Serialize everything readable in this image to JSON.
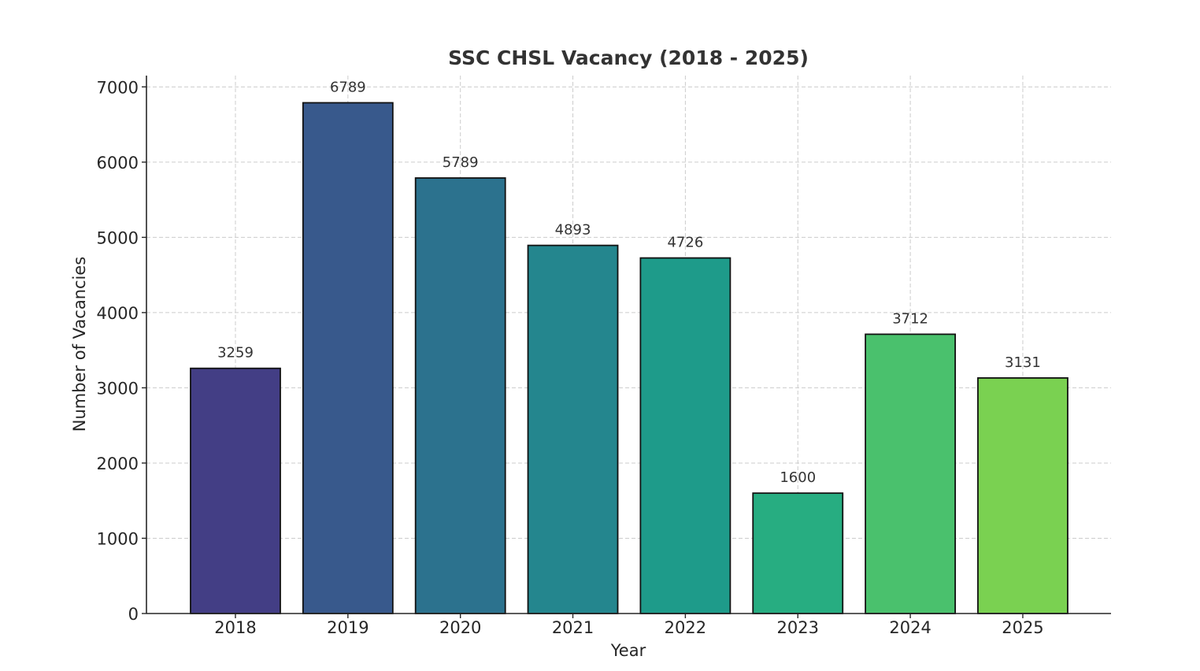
{
  "chart_data": {
    "type": "bar",
    "title": "SSC CHSL Vacancy (2018 - 2025)",
    "xlabel": "Year",
    "ylabel": "Number of Vacancies",
    "categories": [
      "2018",
      "2019",
      "2020",
      "2021",
      "2022",
      "2023",
      "2024",
      "2025"
    ],
    "values": [
      3259,
      6789,
      5789,
      4893,
      4726,
      1600,
      3712,
      3131
    ],
    "colors": [
      "#433e85",
      "#38598c",
      "#2c728e",
      "#24868e",
      "#1e9b8a",
      "#27ad81",
      "#4ac16d",
      "#7ad151"
    ],
    "ylim": [
      0,
      7150
    ],
    "yticks": [
      0,
      1000,
      2000,
      3000,
      4000,
      5000,
      6000,
      7000
    ],
    "grid": true,
    "data_labels": true
  }
}
